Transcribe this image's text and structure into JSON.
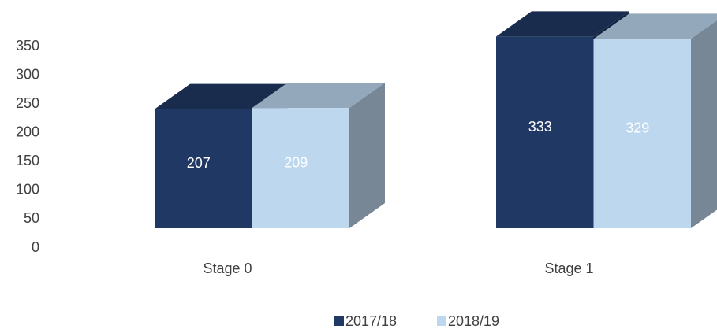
{
  "chart_data": {
    "type": "bar3d",
    "categories": [
      "Stage 0",
      "Stage 1"
    ],
    "series": [
      {
        "name": "2017/18",
        "color": "#203864",
        "values": [
          207,
          333
        ]
      },
      {
        "name": "2018/19",
        "color": "#bdd7ee",
        "values": [
          209,
          329
        ]
      }
    ],
    "ylim": [
      0,
      350
    ],
    "yticks": [
      0,
      50,
      100,
      150,
      200,
      250,
      300,
      350
    ]
  }
}
